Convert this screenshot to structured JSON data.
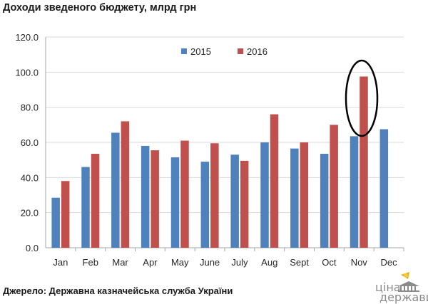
{
  "title": "Доходи зведеного бюджету, млрд грн",
  "source": "Джерело: Державна казначейська служба України",
  "logo": {
    "line1": "ціна",
    "line2": "держави"
  },
  "colors": {
    "series_2015": "#4f81bd",
    "series_2016": "#c0504d",
    "grid": "#d9d9d9",
    "axis": "#a6a6a6",
    "highlight_ellipse": "#000000",
    "logo_accent": "#e8b000"
  },
  "chart_data": {
    "type": "bar",
    "categories": [
      "Jan",
      "Feb",
      "Mar",
      "Apr",
      "May",
      "June",
      "July",
      "Aug",
      "Sept",
      "Oct",
      "Nov",
      "Dec"
    ],
    "series": [
      {
        "name": "2015",
        "values": [
          28.5,
          46.0,
          65.5,
          58.0,
          51.5,
          49.0,
          53.0,
          60.0,
          56.5,
          53.5,
          63.5,
          67.5
        ]
      },
      {
        "name": "2016",
        "values": [
          38.0,
          53.5,
          72.0,
          55.5,
          61.0,
          59.5,
          49.5,
          76.0,
          60.0,
          70.0,
          97.5,
          null
        ]
      }
    ],
    "ylim": [
      0,
      120
    ],
    "yticks": [
      "0.0",
      "20.0",
      "40.0",
      "60.0",
      "80.0",
      "100.0",
      "120.0"
    ],
    "grid": true,
    "legend": "top-center",
    "highlight": {
      "category": "Nov",
      "series": "2016",
      "shape": "ellipse"
    }
  }
}
